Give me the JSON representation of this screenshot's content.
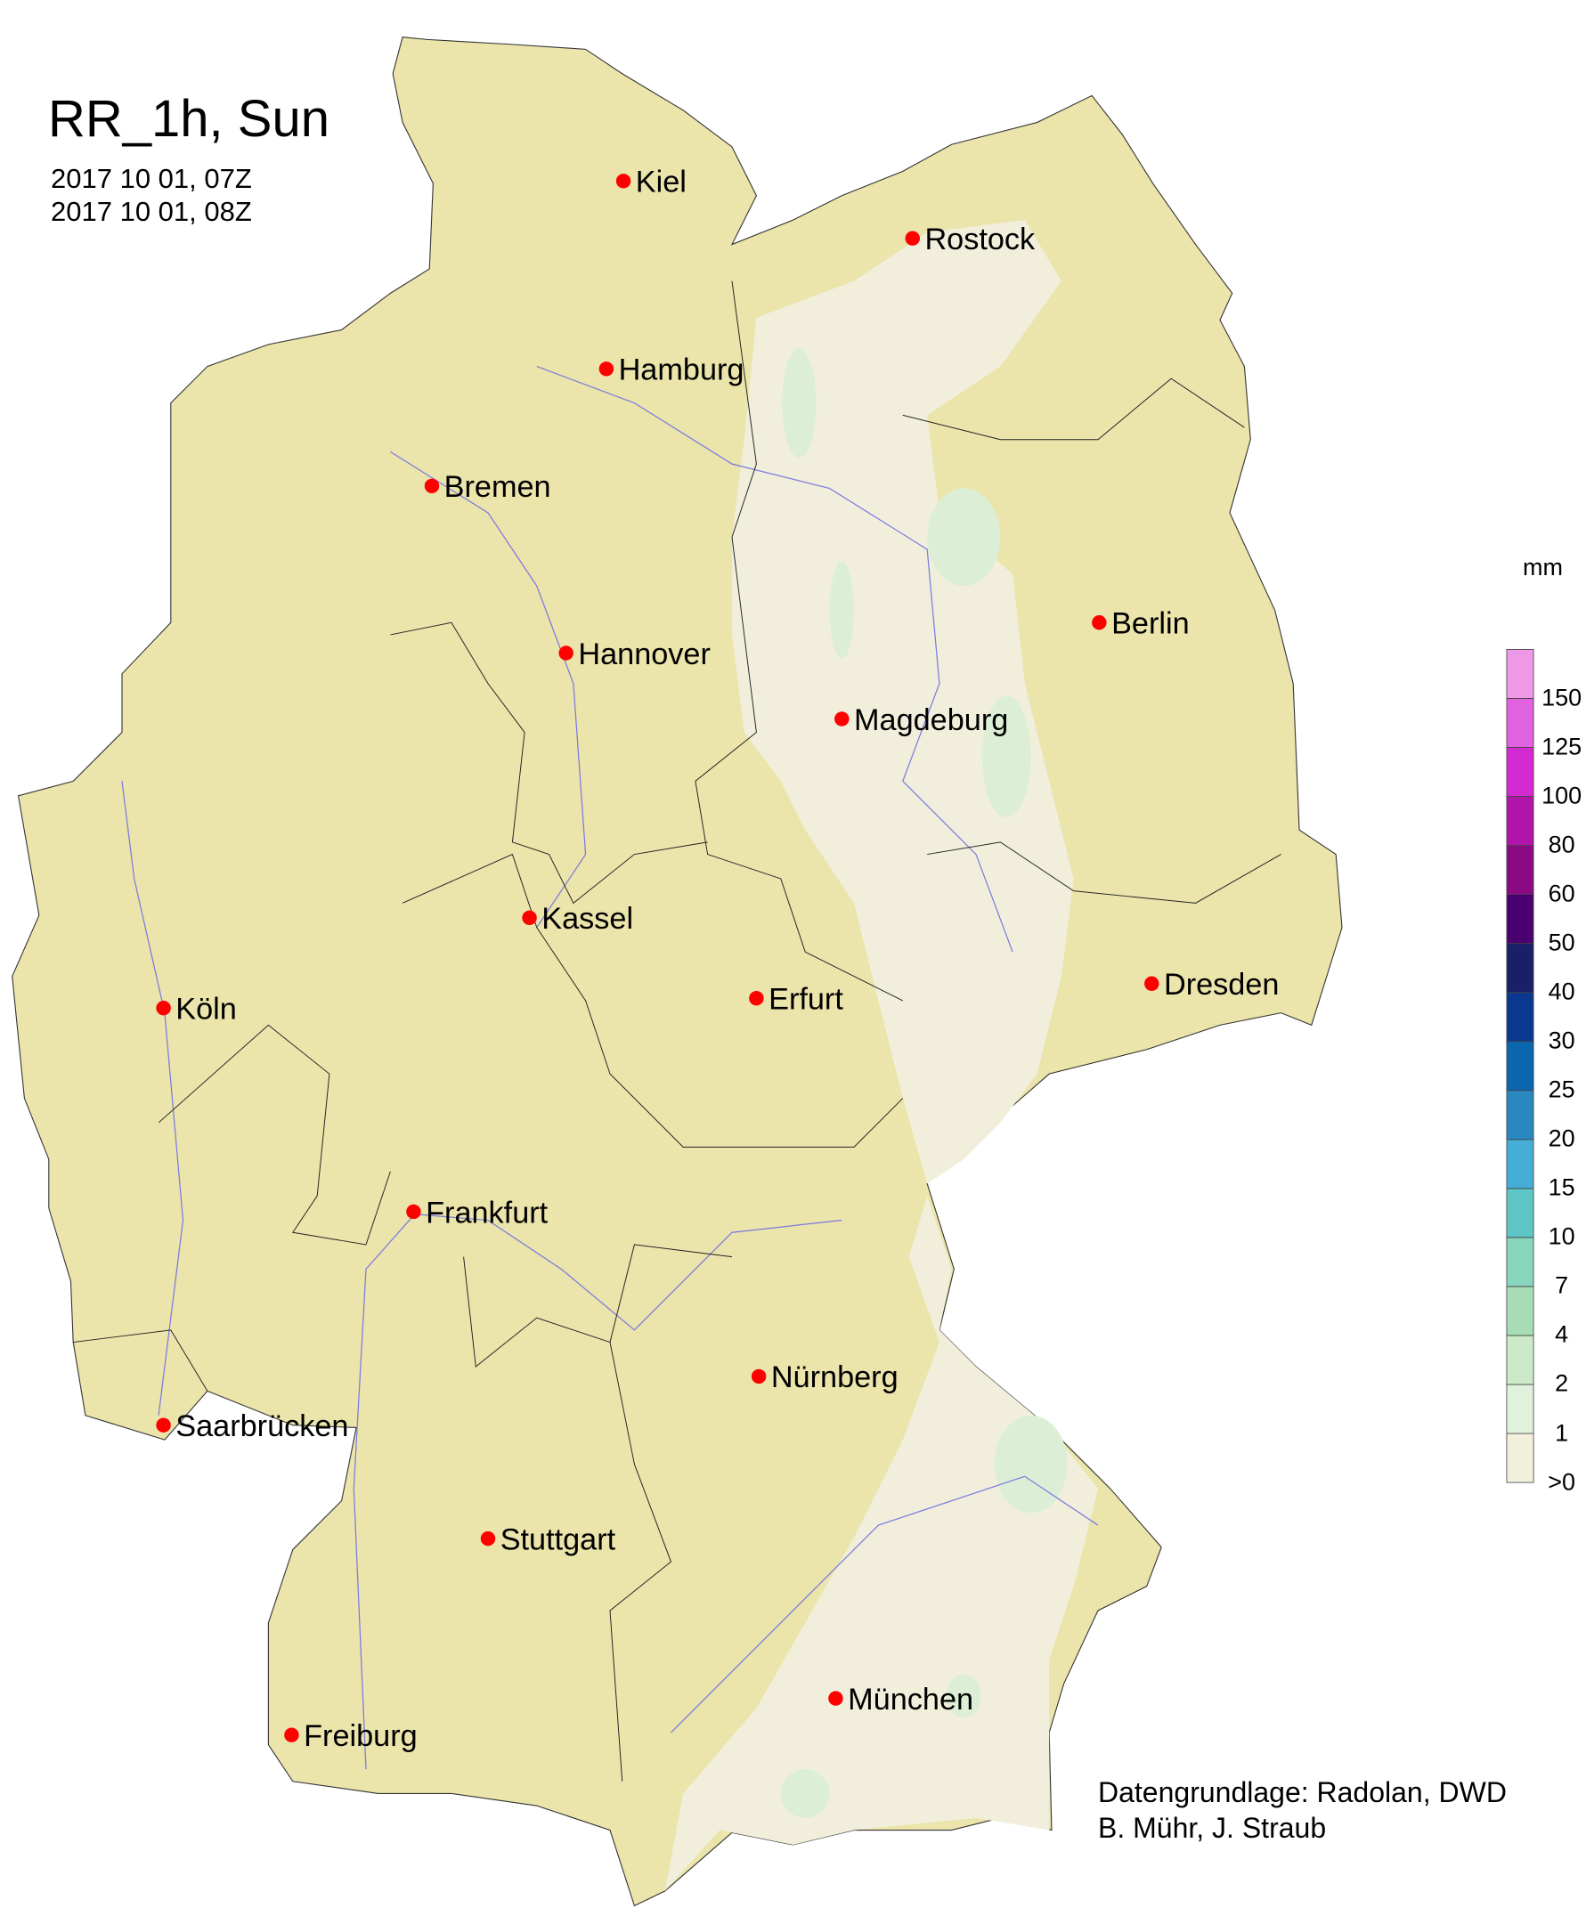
{
  "title": "RR_1h, Sun",
  "period_start": "2017 10 01, 07Z",
  "period_end": "2017 10 01, 08Z",
  "credits": [
    "Datengrundlage: Radolan, DWD",
    "B. Mühr, J. Straub"
  ],
  "legend": {
    "unit": "mm",
    "labels": [
      ">0",
      "1",
      "2",
      "4",
      "7",
      "10",
      "15",
      "20",
      "25",
      "30",
      "40",
      "50",
      "60",
      "80",
      "100",
      "125",
      "150"
    ],
    "colors": [
      "#f2f0dc",
      "#e0f2dc",
      "#cceac8",
      "#a8dcb4",
      "#88d6be",
      "#5ec6c4",
      "#46aed6",
      "#2a88c0",
      "#0a66ae",
      "#0a3890",
      "#1a2068",
      "#4a0070",
      "#8a0a84",
      "#b014a8",
      "#d42ad2",
      "#e062e0",
      "#ee99e6"
    ]
  },
  "map_colors": {
    "land": "#ebe4ab",
    "river": "#7a7ae0",
    "city_marker": "#ff0000"
  },
  "cities": [
    "Kiel",
    "Rostock",
    "Hamburg",
    "Bremen",
    "Berlin",
    "Hannover",
    "Magdeburg",
    "Kassel",
    "Köln",
    "Erfurt",
    "Dresden",
    "Frankfurt",
    "Nürnberg",
    "Saarbrücken",
    "Stuttgart",
    "München",
    "Freiburg"
  ]
}
